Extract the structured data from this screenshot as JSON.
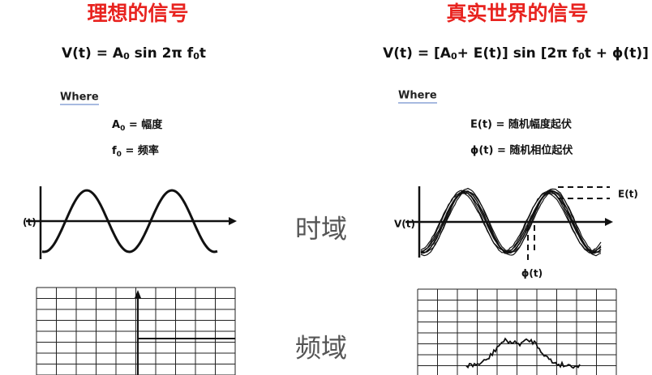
{
  "left": {
    "title": "理想的信号",
    "formula": [
      "V(t) = A",
      "0",
      " sin 2π f",
      "0",
      "t"
    ],
    "where": "Where",
    "defs": [
      [
        "A",
        "0",
        " = 幅度"
      ],
      [
        "f",
        "0",
        " = 频率"
      ]
    ],
    "axis_label": "(t)"
  },
  "middle": {
    "time_domain": "时域",
    "frequency_domain": "频域"
  },
  "right": {
    "title": "真实世界的信号",
    "formula": [
      "V(t) = [A",
      "0",
      "+ E(t)] sin [2π f",
      "0",
      "t + ϕ(t)]"
    ],
    "where": "Where",
    "defs": [
      [
        "E(t) = 随机幅度起伏"
      ],
      [
        "ϕ(t) = 随机相位起伏"
      ]
    ],
    "axis_label": "V(t)",
    "amplitude_label": "E(t)",
    "phase_label": "ϕ(t)"
  }
}
